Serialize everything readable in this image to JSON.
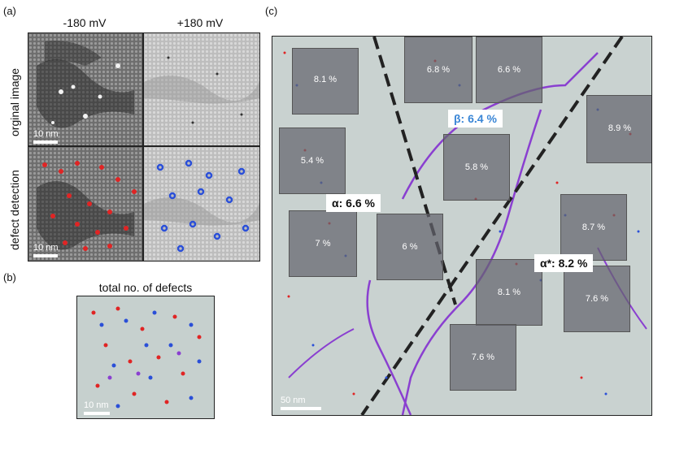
{
  "panel_a": {
    "label": "(a)",
    "col_left": "-180 mV",
    "col_right": "+180 mV",
    "row_top": "orginal image",
    "row_bottom": "defect detection",
    "scale": "10 nm"
  },
  "panel_b": {
    "label": "(b)",
    "title": "total no. of defects",
    "scale": "10 nm"
  },
  "panel_c": {
    "label": "(c)",
    "scale": "50 nm",
    "callouts": [
      {
        "id": "beta",
        "text": "β: 6.4 %",
        "color": "#3a86d6"
      },
      {
        "id": "alpha",
        "text": "α: 6.6 %",
        "color": "#111111"
      },
      {
        "id": "alphastar",
        "text": "α*: 8.2 %",
        "color": "#111111"
      }
    ],
    "regions": [
      "8.1 %",
      "6.8 %",
      "6.6 %",
      "8.9 %",
      "5.4 %",
      "5.8 %",
      "7 %",
      "6 %",
      "8.7 %",
      "8.1 %",
      "7.6 %",
      "7.6 %"
    ]
  },
  "colors": {
    "negative_defect": "#e02424",
    "positive_defect": "#2a4fd8",
    "boundary": "#8a3fd0",
    "background_c": "#c9d2d0"
  }
}
